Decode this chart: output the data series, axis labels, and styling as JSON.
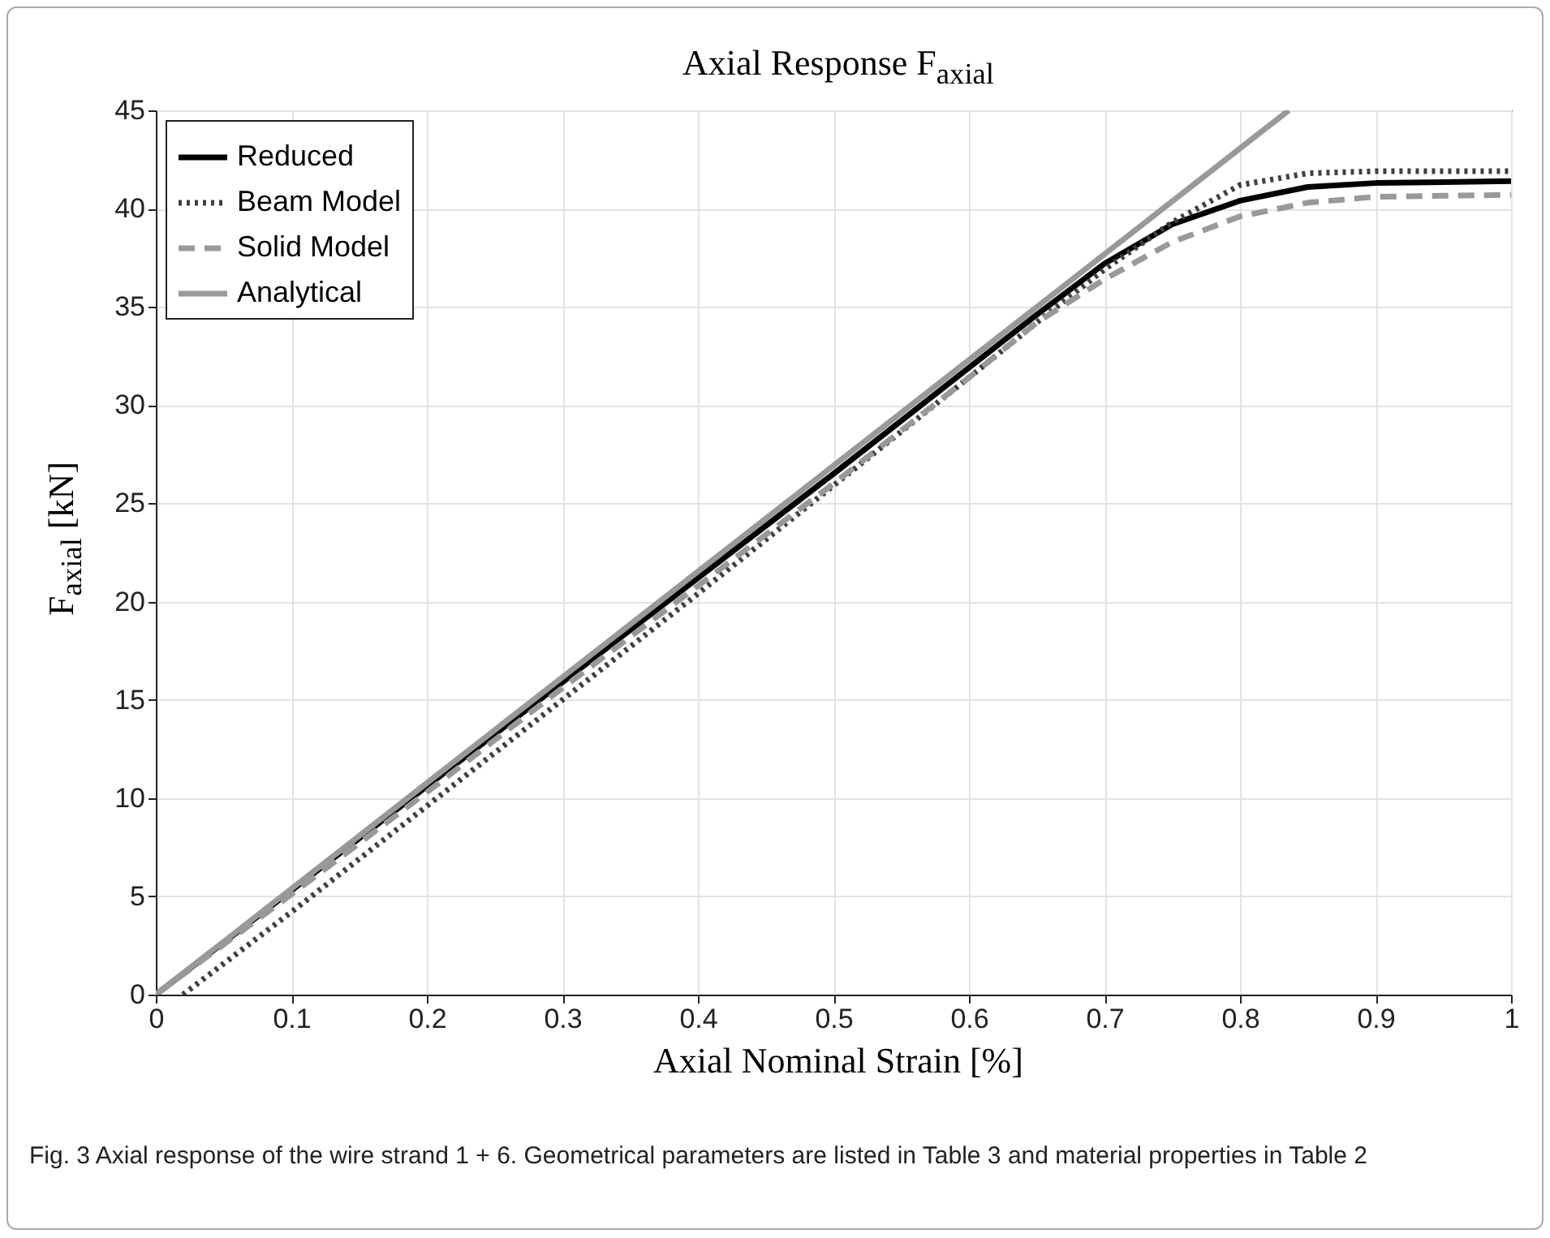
{
  "chart_data": {
    "type": "line",
    "title": "Axial Response F$_{axial}$",
    "xlabel": "Axial Nominal Strain [%]",
    "ylabel": "F$_{axial}$ [kN]",
    "xlim": [
      0,
      1
    ],
    "xticks": [
      0,
      0.1,
      0.2,
      0.3,
      0.4,
      0.5,
      0.6,
      0.7,
      0.8,
      0.9,
      1
    ],
    "ylim": [
      0,
      45
    ],
    "yticks": [
      0,
      5,
      10,
      15,
      20,
      25,
      30,
      35,
      40,
      45
    ],
    "grid": true,
    "legend": "top left",
    "marker": "none",
    "series": [
      {
        "name": "Reduced",
        "color": "#000000",
        "line_style": "solid",
        "x": [
          0,
          0.1,
          0.2,
          0.3,
          0.4,
          0.5,
          0.6,
          0.65,
          0.7,
          0.75,
          0.8,
          0.85,
          0.9,
          1
        ],
        "values": [
          0,
          5.3,
          10.6,
          15.9,
          21.2,
          26.5,
          31.9,
          34.6,
          37.2,
          39.2,
          40.4,
          41.1,
          41.3,
          41.4
        ]
      },
      {
        "name": "Beam Model",
        "color": "#404040",
        "line_style": "dotted",
        "x": [
          0.02,
          0.1,
          0.2,
          0.3,
          0.4,
          0.5,
          0.6,
          0.65,
          0.7,
          0.75,
          0.8,
          0.85,
          0.9,
          1
        ],
        "values": [
          0,
          4.2,
          9.6,
          15.0,
          20.4,
          25.9,
          31.4,
          34.2,
          36.9,
          39.3,
          41.2,
          41.8,
          41.9,
          41.9
        ]
      },
      {
        "name": "Solid Model",
        "color": "#999999",
        "line_style": "dashed",
        "x": [
          0,
          0.1,
          0.2,
          0.3,
          0.4,
          0.5,
          0.6,
          0.65,
          0.7,
          0.75,
          0.8,
          0.85,
          0.9,
          1
        ],
        "values": [
          0,
          5.1,
          10.3,
          15.6,
          20.8,
          26.0,
          31.4,
          34.2,
          36.4,
          38.3,
          39.6,
          40.3,
          40.6,
          40.7
        ]
      },
      {
        "name": "Analytical",
        "color": "#999999",
        "line_style": "solid",
        "x": [
          0,
          0.836
        ],
        "values": [
          0,
          45
        ]
      }
    ],
    "annotations": [
      "Fig. 3 Axial response of the wire strand 1 + 6. Geometrical parameters are listed in Table 3 and material properties in Table 2"
    ]
  }
}
